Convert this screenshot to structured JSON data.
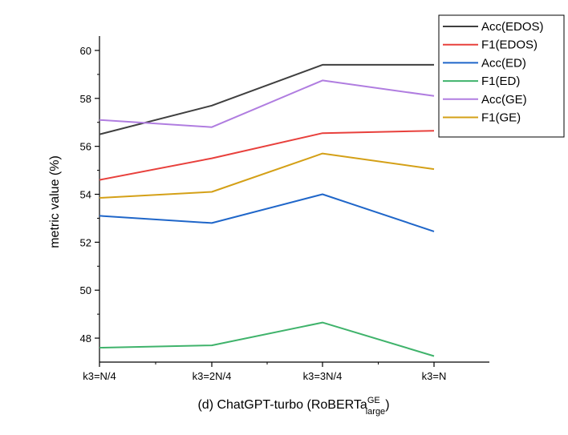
{
  "chart_data": {
    "type": "line",
    "categories": [
      "k3=N/4",
      "k3=2N/4",
      "k3=3N/4",
      "k3=N"
    ],
    "ylabel": "metric value (%)",
    "xlabel": {
      "main": "(d) ChatGPT-turbo (RoBERTa",
      "superscript": "GE",
      "subscript": "large",
      "suffix": ")"
    },
    "ylim": [
      47,
      60.6
    ],
    "yticks": [
      48,
      50,
      52,
      54,
      56,
      58,
      60
    ],
    "grid": false,
    "legend_position": "top-right",
    "series": [
      {
        "name": "Acc(EDOS)",
        "color": "#3f3f3f",
        "values": [
          56.5,
          57.7,
          59.4,
          59.4
        ]
      },
      {
        "name": "F1(EDOS)",
        "color": "#e8403c",
        "values": [
          54.6,
          55.5,
          56.55,
          56.65
        ]
      },
      {
        "name": "Acc(ED)",
        "color": "#1f66c9",
        "values": [
          53.1,
          52.8,
          54.0,
          52.45
        ]
      },
      {
        "name": "F1(ED)",
        "color": "#3fb36b",
        "values": [
          47.6,
          47.7,
          48.65,
          47.25
        ]
      },
      {
        "name": "Acc(GE)",
        "color": "#b07de0",
        "values": [
          57.1,
          56.8,
          58.75,
          58.1
        ]
      },
      {
        "name": "F1(GE)",
        "color": "#d4a017",
        "values": [
          53.85,
          54.1,
          55.7,
          55.05
        ]
      }
    ]
  }
}
